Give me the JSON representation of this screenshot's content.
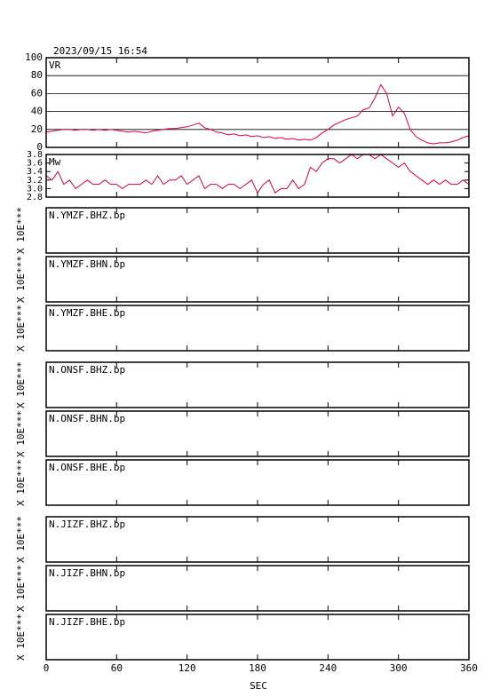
{
  "title": "2023/09/15 16:54",
  "x_axis": {
    "label": "SEC",
    "xlim": [
      0,
      360
    ],
    "xticks": [
      0,
      60,
      120,
      180,
      240,
      300,
      360
    ]
  },
  "chart_data": [
    {
      "type": "line",
      "label": "VR",
      "color": "#d6003c",
      "grid": true,
      "x": [
        0,
        5,
        10,
        15,
        20,
        25,
        30,
        35,
        40,
        45,
        50,
        55,
        60,
        65,
        70,
        75,
        80,
        85,
        90,
        95,
        100,
        105,
        110,
        115,
        120,
        125,
        130,
        135,
        140,
        145,
        150,
        155,
        160,
        165,
        170,
        175,
        180,
        185,
        190,
        195,
        200,
        205,
        210,
        215,
        220,
        225,
        230,
        235,
        240,
        245,
        250,
        255,
        260,
        265,
        270,
        275,
        280,
        285,
        290,
        295,
        300,
        305,
        310,
        315,
        320,
        325,
        330,
        335,
        340,
        345,
        350,
        355,
        360
      ],
      "values": [
        17,
        18,
        19,
        20,
        20,
        19,
        20,
        20,
        19,
        20,
        19,
        20,
        19,
        18,
        17,
        18,
        17,
        16,
        18,
        19,
        20,
        21,
        21,
        22,
        23,
        25,
        27,
        22,
        20,
        17,
        16,
        14,
        15,
        13,
        14,
        12,
        13,
        11,
        12,
        10,
        11,
        9,
        10,
        8,
        9,
        8,
        11,
        16,
        20,
        25,
        28,
        31,
        33,
        35,
        42,
        44,
        55,
        70,
        60,
        35,
        45,
        38,
        20,
        12,
        8,
        5,
        4,
        5,
        5,
        6,
        8,
        11,
        13
      ],
      "xlim": [
        0,
        360
      ],
      "ylim": [
        0,
        100
      ],
      "yticks": [
        0,
        20,
        40,
        60,
        80,
        100
      ]
    },
    {
      "type": "line",
      "label": "Mw",
      "color": "#d6003c",
      "grid": false,
      "x": [
        0,
        5,
        10,
        15,
        20,
        25,
        30,
        35,
        40,
        45,
        50,
        55,
        60,
        65,
        70,
        75,
        80,
        85,
        90,
        95,
        100,
        105,
        110,
        115,
        120,
        125,
        130,
        135,
        140,
        145,
        150,
        155,
        160,
        165,
        170,
        175,
        180,
        185,
        190,
        195,
        200,
        205,
        210,
        215,
        220,
        225,
        230,
        235,
        240,
        245,
        250,
        255,
        260,
        265,
        270,
        275,
        280,
        285,
        290,
        295,
        300,
        305,
        310,
        315,
        320,
        325,
        330,
        335,
        340,
        345,
        350,
        355,
        360
      ],
      "values": [
        3.3,
        3.2,
        3.4,
        3.1,
        3.2,
        3.0,
        3.1,
        3.2,
        3.1,
        3.1,
        3.2,
        3.1,
        3.1,
        3.0,
        3.1,
        3.1,
        3.1,
        3.2,
        3.1,
        3.3,
        3.1,
        3.2,
        3.2,
        3.3,
        3.1,
        3.2,
        3.3,
        3.0,
        3.1,
        3.1,
        3.0,
        3.1,
        3.1,
        3.0,
        3.1,
        3.2,
        2.9,
        3.1,
        3.2,
        2.9,
        3.0,
        3.0,
        3.2,
        3.0,
        3.1,
        3.5,
        3.4,
        3.6,
        3.7,
        3.7,
        3.6,
        3.7,
        3.8,
        3.7,
        3.8,
        3.8,
        3.7,
        3.8,
        3.7,
        3.6,
        3.5,
        3.6,
        3.4,
        3.3,
        3.2,
        3.1,
        3.2,
        3.1,
        3.2,
        3.1,
        3.1,
        3.2,
        3.1
      ],
      "xlim": [
        0,
        360
      ],
      "ylim": [
        2.8,
        3.8
      ],
      "yticks": [
        2.8,
        {
          "value": 3,
          "label": "3.0"
        },
        3.2,
        3.4,
        3.6,
        3.8
      ]
    }
  ],
  "waveform_panels": [
    {
      "label": "N.YMZF.BHZ.bp",
      "axis_label": "X 10E***"
    },
    {
      "label": "N.YMZF.BHN.bp",
      "axis_label": "X 10E***"
    },
    {
      "label": "N.YMZF.BHE.bp",
      "axis_label": "X 10E***"
    },
    {
      "label": "N.ONSF.BHZ.bp",
      "axis_label": "X 10E***"
    },
    {
      "label": "N.ONSF.BHN.bp",
      "axis_label": "X 10E***"
    },
    {
      "label": "N.ONSF.BHE.bp",
      "axis_label": "X 10E***"
    },
    {
      "label": "N.JIZF.BHZ.bp",
      "axis_label": "X 10E***"
    },
    {
      "label": "N.JIZF.BHN.bp",
      "axis_label": "X 10E***"
    },
    {
      "label": "N.JIZF.BHE.bp",
      "axis_label": "X 10E***"
    }
  ]
}
